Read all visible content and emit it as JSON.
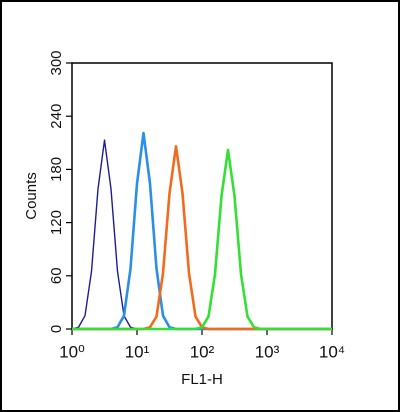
{
  "chart_data": {
    "type": "line",
    "x_label": "FL1-H",
    "y_label": "Counts",
    "xscale": "log",
    "xlim": [
      1,
      10000
    ],
    "xticks": [
      {
        "value": 1,
        "label": "10⁰"
      },
      {
        "value": 10,
        "label": "10¹"
      },
      {
        "value": 100,
        "label": "10²"
      },
      {
        "value": 1000,
        "label": "10³"
      },
      {
        "value": 10000,
        "label": "10⁴"
      }
    ],
    "ylim": [
      0,
      300
    ],
    "yticks": [
      0,
      60,
      120,
      180,
      240,
      300
    ],
    "x": [
      1,
      1.259,
      1.585,
      1.995,
      2.512,
      3.162,
      3.981,
      5.012,
      6.31,
      7.943,
      10,
      12.59,
      15.85,
      19.95,
      25.12,
      31.62,
      39.81,
      50.12,
      63.1,
      79.43,
      100,
      125.9,
      158.5,
      199.5,
      251.2,
      316.2,
      398.1,
      501.2,
      631,
      794.3,
      1000,
      1259,
      1585,
      1995,
      2512,
      3162,
      3981,
      5012,
      6310,
      7943,
      10000
    ],
    "series": [
      {
        "color": "#1c1c9c",
        "width": 1.4,
        "values": [
          0,
          2,
          15,
          65,
          158,
          213,
          158,
          65,
          15,
          2,
          0,
          0,
          0,
          0,
          0,
          0,
          0,
          0,
          0,
          0,
          0,
          0,
          0,
          0,
          0,
          0,
          0,
          0,
          0,
          0,
          0,
          0,
          0,
          0,
          0,
          0,
          0,
          0,
          0,
          0,
          0
        ]
      },
      {
        "color": "#2a8fe6",
        "width": 2.6,
        "values": [
          0,
          0,
          0,
          0,
          0,
          0,
          0,
          2,
          15,
          68,
          164,
          221,
          164,
          68,
          15,
          2,
          0,
          0,
          0,
          0,
          0,
          0,
          0,
          0,
          0,
          0,
          0,
          0,
          0,
          0,
          0,
          0,
          0,
          0,
          0,
          0,
          0,
          0,
          0,
          0,
          0
        ]
      },
      {
        "color": "#f26b1d",
        "width": 2.6,
        "values": [
          0,
          0,
          0,
          0,
          0,
          0,
          0,
          0,
          0,
          0,
          0,
          0,
          2,
          14,
          63,
          153,
          206,
          153,
          63,
          14,
          2,
          0,
          0,
          0,
          0,
          0,
          0,
          0,
          0,
          0,
          0,
          0,
          0,
          0,
          0,
          0,
          0,
          0,
          0,
          0,
          0
        ]
      },
      {
        "color": "#33e033",
        "width": 2.6,
        "values": [
          0,
          0,
          0,
          0,
          0,
          0,
          0,
          0,
          0,
          0,
          0,
          0,
          0,
          0,
          0,
          0,
          0,
          0,
          0,
          0,
          2,
          14,
          62,
          150,
          202,
          150,
          62,
          14,
          2,
          0,
          0,
          0,
          0,
          0,
          0,
          0,
          0,
          0,
          0,
          0,
          0
        ]
      }
    ]
  }
}
